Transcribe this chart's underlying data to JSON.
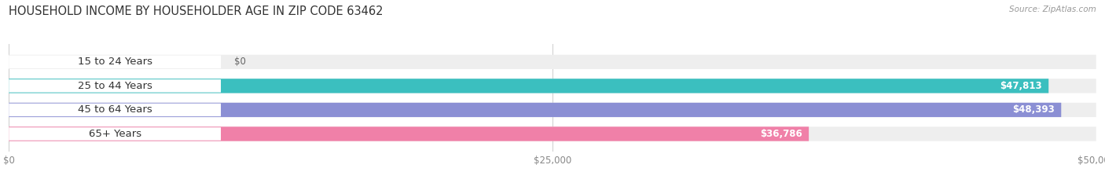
{
  "title": "HOUSEHOLD INCOME BY HOUSEHOLDER AGE IN ZIP CODE 63462",
  "source": "Source: ZipAtlas.com",
  "categories": [
    "15 to 24 Years",
    "25 to 44 Years",
    "45 to 64 Years",
    "65+ Years"
  ],
  "values": [
    0,
    47813,
    48393,
    36786
  ],
  "bar_colors": [
    "#c9a8d4",
    "#3bbfbf",
    "#8b8fd4",
    "#f080a8"
  ],
  "bar_bg_color": "#eeeeee",
  "max_value": 50000,
  "xticks": [
    0,
    25000,
    50000
  ],
  "xtick_labels": [
    "$0",
    "$25,000",
    "$50,000"
  ],
  "value_labels": [
    "$0",
    "$47,813",
    "$48,393",
    "$36,786"
  ],
  "fig_width": 14.06,
  "fig_height": 2.33,
  "background_color": "#ffffff",
  "bar_height": 0.6,
  "title_fontsize": 10.5,
  "label_fontsize": 9.5,
  "value_fontsize": 8.5,
  "tick_fontsize": 8.5
}
